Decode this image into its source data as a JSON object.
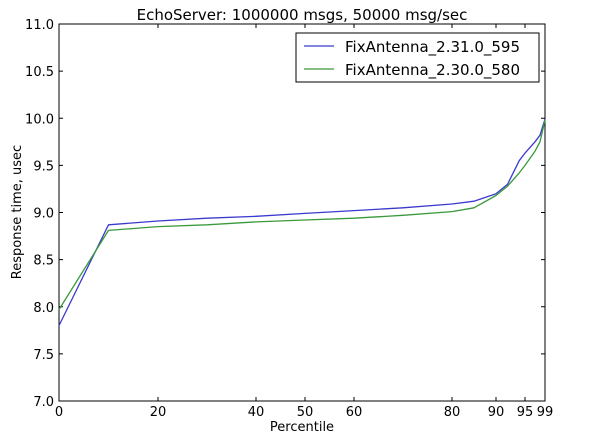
{
  "chart_data": {
    "type": "line",
    "title": "EchoServer: 1000000 msgs, 50000 msg/sec",
    "xlabel": "Percentile",
    "ylabel": "Response time, usec",
    "ylim": [
      7.0,
      11.0
    ],
    "yticks": [
      "7.0",
      "7.5",
      "8.0",
      "8.5",
      "9.0",
      "9.5",
      "10.0",
      "10.5",
      "11.0"
    ],
    "xticks": [
      "0",
      "20",
      "40",
      "50",
      "60",
      "80",
      "90",
      "95",
      "99"
    ],
    "grid": false,
    "legend_position": "top-right",
    "series": [
      {
        "name": "FixAntenna_2.31.0_595",
        "color": "#3a3acd",
        "points": [
          [
            "0",
            7.8
          ],
          [
            "10",
            8.87
          ],
          [
            "20",
            8.91
          ],
          [
            "30",
            8.94
          ],
          [
            "40",
            8.96
          ],
          [
            "50",
            8.99
          ],
          [
            "60",
            9.02
          ],
          [
            "70",
            9.05
          ],
          [
            "80",
            9.09
          ],
          [
            "85",
            9.12
          ],
          [
            "90",
            9.2
          ],
          [
            "92",
            9.3
          ],
          [
            "94",
            9.55
          ],
          [
            "95",
            9.63
          ],
          [
            "97",
            9.75
          ],
          [
            "98",
            9.82
          ],
          [
            "99",
            9.99
          ]
        ]
      },
      {
        "name": "FixAntenna_2.30.0_580",
        "color": "#3a9a3a",
        "points": [
          [
            "0",
            7.97
          ],
          [
            "10",
            8.81
          ],
          [
            "20",
            8.85
          ],
          [
            "30",
            8.87
          ],
          [
            "40",
            8.9
          ],
          [
            "50",
            8.92
          ],
          [
            "60",
            8.94
          ],
          [
            "70",
            8.97
          ],
          [
            "80",
            9.01
          ],
          [
            "85",
            9.05
          ],
          [
            "90",
            9.18
          ],
          [
            "92",
            9.28
          ],
          [
            "94",
            9.42
          ],
          [
            "95",
            9.5
          ],
          [
            "97",
            9.65
          ],
          [
            "98",
            9.75
          ],
          [
            "99",
            9.98
          ]
        ]
      }
    ]
  }
}
